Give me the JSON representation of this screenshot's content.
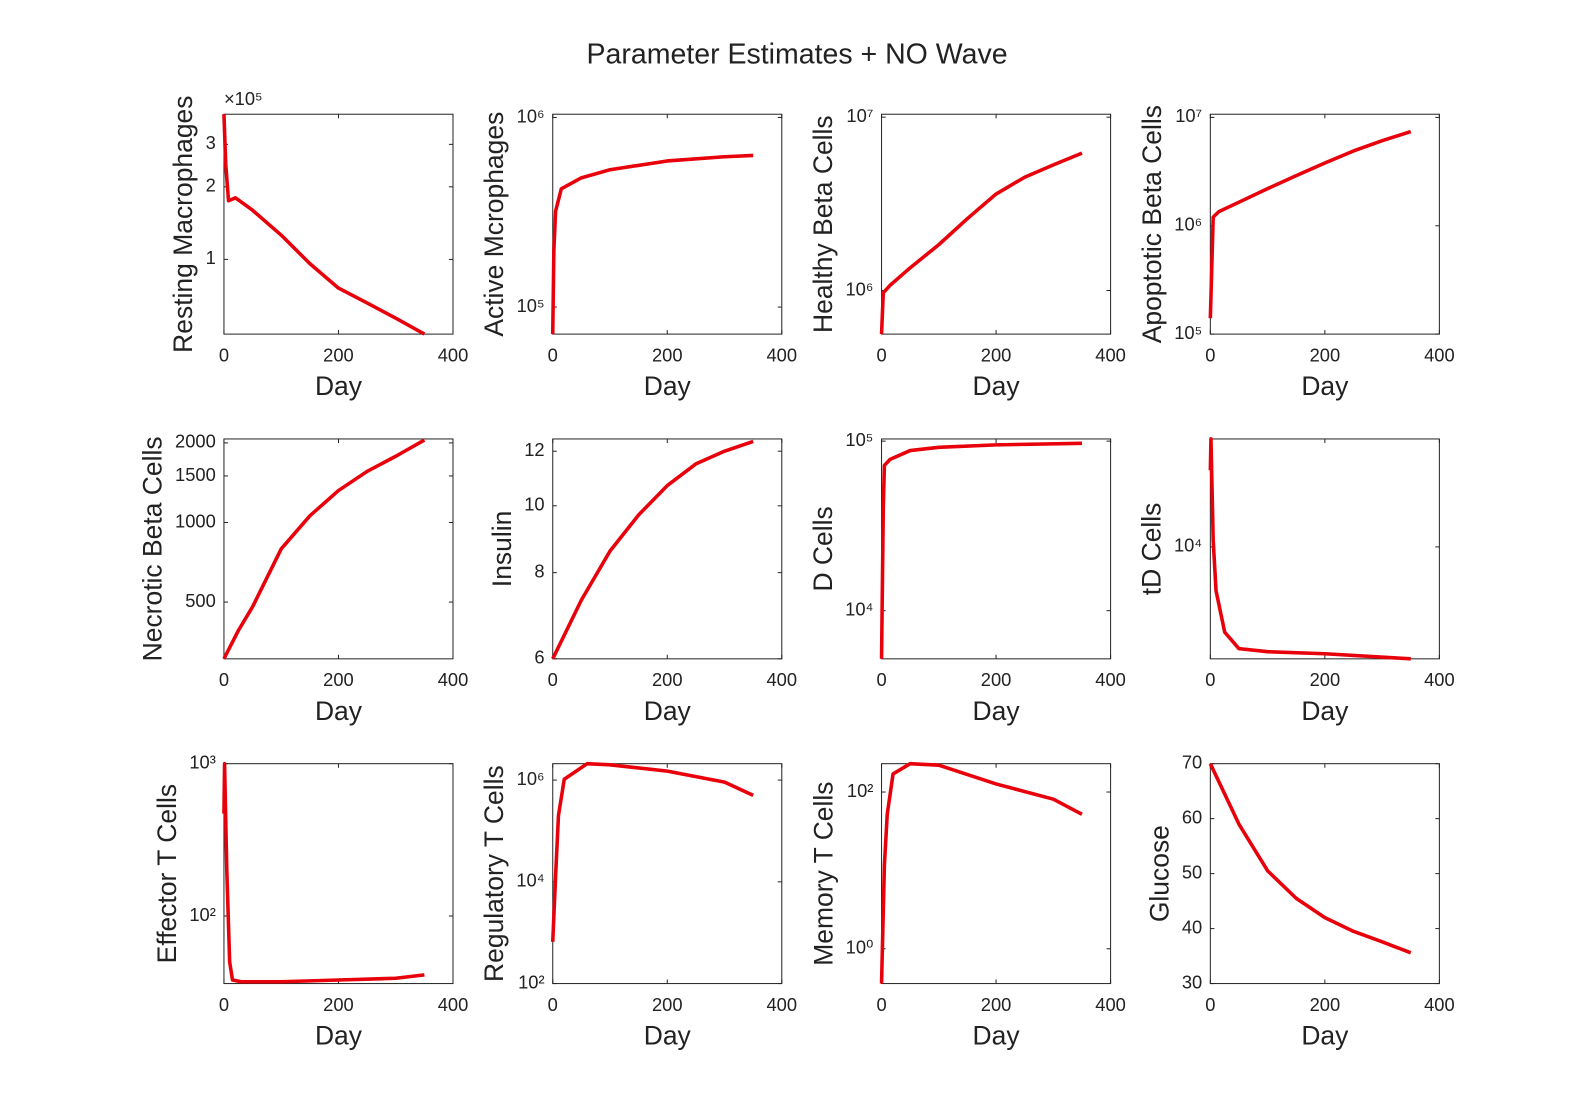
{
  "title": "Parameter Estimates + NO Wave",
  "chart_data": [
    {
      "type": "line",
      "y_label": "Resting Macrophages",
      "x_label": "Day",
      "y_exponent_label": "×10⁵",
      "log_y": true,
      "xlim": [
        0,
        400
      ],
      "xticks": [
        0,
        200,
        400
      ],
      "ylim": [
        49000,
        400000
      ],
      "yticks": [
        {
          "value": 100000,
          "label": "1"
        },
        {
          "value": 200000,
          "label": "2"
        },
        {
          "value": 300000,
          "label": "3"
        }
      ],
      "x": [
        0,
        3,
        8,
        20,
        50,
        100,
        150,
        200,
        250,
        300,
        350
      ],
      "series": [
        {
          "color": "#e8000b",
          "values": [
            400000,
            250000,
            175000,
            180000,
            160000,
            126000,
            96000,
            76000,
            66000,
            57000,
            49000
          ]
        }
      ]
    },
    {
      "type": "line",
      "y_label": "Active Mcrophages",
      "x_label": "Day",
      "log_y": true,
      "xlim": [
        0,
        400
      ],
      "xticks": [
        0,
        200,
        400
      ],
      "ylim": [
        72000,
        1040000
      ],
      "yticks": [
        {
          "value": 100000,
          "label": "10⁵"
        },
        {
          "value": 1000000,
          "label": "10⁶"
        }
      ],
      "x": [
        0,
        2,
        5,
        15,
        50,
        100,
        200,
        300,
        350
      ],
      "series": [
        {
          "color": "#e8000b",
          "values": [
            72000,
            200000,
            320000,
            420000,
            480000,
            530000,
            590000,
            620000,
            630000
          ]
        }
      ]
    },
    {
      "type": "line",
      "y_label": "Healthy Beta Cells",
      "x_label": "Day",
      "log_y": true,
      "xlim": [
        0,
        400
      ],
      "xticks": [
        0,
        200,
        400
      ],
      "ylim": [
        560000,
        10400000
      ],
      "yticks": [
        {
          "value": 1000000,
          "label": "10⁶"
        },
        {
          "value": 10000000,
          "label": "10⁷"
        }
      ],
      "x": [
        0,
        3,
        15,
        50,
        100,
        150,
        200,
        250,
        300,
        350
      ],
      "series": [
        {
          "color": "#e8000b",
          "values": [
            560000,
            970000,
            1070000,
            1350000,
            1840000,
            2600000,
            3600000,
            4500000,
            5300000,
            6200000
          ]
        }
      ]
    },
    {
      "type": "line",
      "y_label": "Apoptotic Beta Cells",
      "x_label": "Day",
      "log_y": true,
      "xlim": [
        0,
        400
      ],
      "xticks": [
        0,
        200,
        400
      ],
      "ylim": [
        100000,
        10700000
      ],
      "yticks": [
        {
          "value": 100000,
          "label": "10⁵"
        },
        {
          "value": 1000000,
          "label": "10⁶"
        },
        {
          "value": 10000000,
          "label": "10⁷"
        }
      ],
      "x": [
        0,
        5,
        15,
        50,
        100,
        150,
        200,
        250,
        300,
        350
      ],
      "series": [
        {
          "color": "#e8000b",
          "values": [
            140000,
            1200000,
            1350000,
            1650000,
            2200000,
            2900000,
            3800000,
            4900000,
            6100000,
            7400000
          ]
        }
      ]
    },
    {
      "type": "line",
      "y_label": "Necrotic Beta Cells",
      "x_label": "Day",
      "log_y": true,
      "xlim": [
        0,
        400
      ],
      "xticks": [
        0,
        200,
        400
      ],
      "ylim": [
        305,
        2070
      ],
      "yticks": [
        500,
        1000,
        1500,
        2000
      ],
      "x": [
        0,
        25,
        50,
        100,
        150,
        200,
        250,
        300,
        350
      ],
      "series": [
        {
          "color": "#e8000b",
          "values": [
            305,
            390,
            480,
            795,
            1060,
            1320,
            1560,
            1780,
            2050
          ]
        }
      ]
    },
    {
      "type": "line",
      "y_label": "Insulin",
      "x_label": "Day",
      "log_y": true,
      "xlim": [
        0,
        400
      ],
      "xticks": [
        0,
        200,
        400
      ],
      "ylim": [
        6,
        12.5
      ],
      "yticks": [
        6,
        8,
        10,
        12
      ],
      "x": [
        0,
        50,
        100,
        150,
        200,
        250,
        300,
        350
      ],
      "series": [
        {
          "color": "#e8000b",
          "values": [
            6,
            7.3,
            8.6,
            9.7,
            10.7,
            11.5,
            12,
            12.4
          ]
        }
      ]
    },
    {
      "type": "line",
      "y_label": "D Cells",
      "x_label": "Day",
      "log_y": true,
      "xlim": [
        0,
        400
      ],
      "xticks": [
        0,
        200,
        400
      ],
      "ylim": [
        5200,
        103000
      ],
      "yticks": [
        {
          "value": 10000,
          "label": "10⁴"
        },
        {
          "value": 100000,
          "label": "10⁵"
        }
      ],
      "x": [
        0,
        3,
        5,
        15,
        50,
        100,
        200,
        350
      ],
      "series": [
        {
          "color": "#e8000b",
          "values": [
            5200,
            40000,
            72000,
            78000,
            88000,
            92000,
            95000,
            97000
          ]
        }
      ]
    },
    {
      "type": "line",
      "y_label": "tD Cells",
      "x_label": "Day",
      "log_y": true,
      "xlim": [
        0,
        400
      ],
      "xticks": [
        0,
        200,
        400
      ],
      "ylim": [
        3200,
        30000
      ],
      "yticks": [
        {
          "value": 10000,
          "label": "10⁴"
        }
      ],
      "x": [
        0,
        1,
        5,
        10,
        25,
        50,
        100,
        200,
        350
      ],
      "series": [
        {
          "color": "#e8000b",
          "values": [
            21800,
            30000,
            10700,
            6400,
            4200,
            3550,
            3440,
            3370,
            3200
          ]
        }
      ]
    },
    {
      "type": "line",
      "y_label": "Effector T Cells",
      "x_label": "Day",
      "log_y": true,
      "xlim": [
        0,
        400
      ],
      "xticks": [
        0,
        200,
        400
      ],
      "ylim": [
        36,
        1000
      ],
      "yticks": [
        {
          "value": 100,
          "label": "10²"
        },
        {
          "value": 1000,
          "label": "10³"
        }
      ],
      "x": [
        0,
        1,
        5,
        10,
        15,
        30,
        100,
        200,
        300,
        350
      ],
      "series": [
        {
          "color": "#e8000b",
          "values": [
            470,
            1000,
            200,
            50,
            38,
            37,
            37,
            38,
            39,
            41
          ]
        }
      ]
    },
    {
      "type": "line",
      "y_label": "Regulatory T Cells",
      "x_label": "Day",
      "log_y": true,
      "xlim": [
        0,
        400
      ],
      "xticks": [
        0,
        200,
        400
      ],
      "ylim": [
        100,
        2100000
      ],
      "yticks": [
        {
          "value": 100,
          "label": "10²"
        },
        {
          "value": 10000,
          "label": "10⁴"
        },
        {
          "value": 1000000,
          "label": "10⁶"
        }
      ],
      "x": [
        0,
        5,
        10,
        20,
        60,
        100,
        200,
        300,
        350
      ],
      "series": [
        {
          "color": "#e8000b",
          "values": [
            660,
            13000,
            200000,
            1040000,
            2100000,
            2000000,
            1500000,
            910000,
            500000
          ]
        }
      ]
    },
    {
      "type": "line",
      "y_label": "Memory T Cells",
      "x_label": "Day",
      "log_y": true,
      "xlim": [
        0,
        400
      ],
      "xticks": [
        0,
        200,
        400
      ],
      "ylim": [
        0.36,
        230
      ],
      "yticks": [
        {
          "value": 1,
          "label": "10⁰"
        },
        {
          "value": 100,
          "label": "10²"
        }
      ],
      "x": [
        0,
        5,
        10,
        20,
        50,
        100,
        200,
        300,
        350
      ],
      "series": [
        {
          "color": "#e8000b",
          "values": [
            0.36,
            11.7,
            52,
            170,
            230,
            220,
            127,
            81,
            52
          ]
        }
      ]
    },
    {
      "type": "line",
      "y_label": "Glucose",
      "x_label": "Day",
      "log_y": false,
      "xlim": [
        0,
        400
      ],
      "xticks": [
        0,
        200,
        400
      ],
      "ylim": [
        30,
        70
      ],
      "yticks": [
        30,
        40,
        50,
        60,
        70
      ],
      "x": [
        0,
        50,
        100,
        150,
        200,
        250,
        300,
        350
      ],
      "series": [
        {
          "color": "#e8000b",
          "values": [
            70,
            59,
            50.5,
            45.5,
            42,
            39.5,
            37.6,
            35.6
          ]
        }
      ]
    }
  ]
}
